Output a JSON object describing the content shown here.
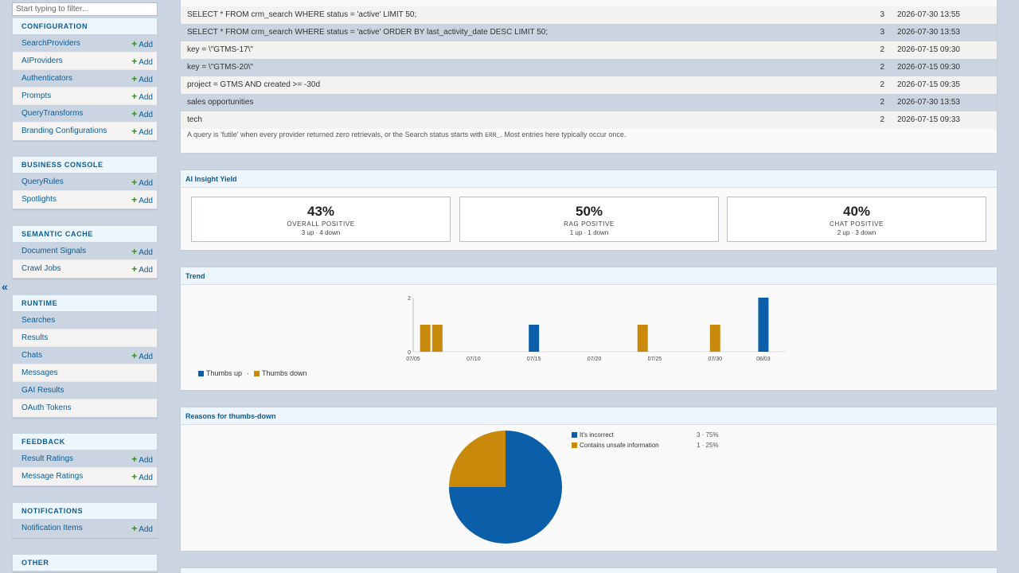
{
  "sidebar": {
    "filter_placeholder": "Start typing to filter...",
    "collapse_glyph": "«",
    "add_label": "Add",
    "modules": [
      {
        "caption": "CONFIGURATION",
        "items": [
          {
            "label": "SearchProviders",
            "add": true
          },
          {
            "label": "AIProviders",
            "add": true
          },
          {
            "label": "Authenticators",
            "add": true
          },
          {
            "label": "Prompts",
            "add": true
          },
          {
            "label": "QueryTransforms",
            "add": true
          },
          {
            "label": "Branding Configurations",
            "add": true
          }
        ]
      },
      {
        "caption": "BUSINESS CONSOLE",
        "items": [
          {
            "label": "QueryRules",
            "add": true
          },
          {
            "label": "Spotlights",
            "add": true
          }
        ]
      },
      {
        "caption": "SEMANTIC CACHE",
        "items": [
          {
            "label": "Document Signals",
            "add": true
          },
          {
            "label": "Crawl Jobs",
            "add": true
          }
        ]
      },
      {
        "caption": "RUNTIME",
        "items": [
          {
            "label": "Searches",
            "add": false
          },
          {
            "label": "Results",
            "add": false
          },
          {
            "label": "Chats",
            "add": true
          },
          {
            "label": "Messages",
            "add": false
          },
          {
            "label": "GAI Results",
            "add": false
          },
          {
            "label": "OAuth Tokens",
            "add": false
          }
        ]
      },
      {
        "caption": "FEEDBACK",
        "items": [
          {
            "label": "Result Ratings",
            "add": true
          },
          {
            "label": "Message Ratings",
            "add": true
          }
        ]
      },
      {
        "caption": "NOTIFICATIONS",
        "items": [
          {
            "label": "Notification Items",
            "add": true
          }
        ]
      },
      {
        "caption": "OTHER",
        "items": []
      }
    ]
  },
  "futile_queries": {
    "rows": [
      {
        "query": "SELECT * FROM crm_search WHERE status = 'active' LIMIT 50;",
        "count": "3",
        "last": "2026-07-30 13:55"
      },
      {
        "query": "SELECT * FROM crm_search WHERE status = 'active' ORDER BY last_activity_date DESC LIMIT 50;",
        "count": "3",
        "last": "2026-07-30 13:53"
      },
      {
        "query": "key = \\\"GTMS-17\\\"",
        "count": "2",
        "last": "2026-07-15 09:30"
      },
      {
        "query": "key = \\\"GTMS-20\\\"",
        "count": "2",
        "last": "2026-07-15 09:30"
      },
      {
        "query": "project = GTMS AND created >= -30d",
        "count": "2",
        "last": "2026-07-15 09:35"
      },
      {
        "query": "sales opportunities",
        "count": "2",
        "last": "2026-07-30 13:53"
      },
      {
        "query": "tech",
        "count": "2",
        "last": "2026-07-15 09:33"
      }
    ],
    "note_before": "A query is 'futile' when every provider returned zero retrievals, or the Search status starts with",
    "note_code": "ERR_",
    "note_after": ". Most entries here typically occur once."
  },
  "insight": {
    "title": "AI Insight Yield",
    "cards": [
      {
        "pct": "43%",
        "label": "OVERALL POSITIVE",
        "sub": "3 up · 4 down"
      },
      {
        "pct": "50%",
        "label": "RAG POSITIVE",
        "sub": "1 up · 1 down"
      },
      {
        "pct": "40%",
        "label": "CHAT POSITIVE",
        "sub": "2 up · 3 down"
      }
    ]
  },
  "trend": {
    "title": "Trend",
    "legend": {
      "up": "Thumbs up",
      "sep": "·",
      "down": "Thumbs down"
    }
  },
  "reasons": {
    "title": "Reasons for thumbs-down"
  },
  "colors": {
    "up": "#0a5fa8",
    "down": "#c98a0b",
    "accent": "#0a5c96",
    "add_plus": "#3a8a26"
  },
  "chart_data": [
    {
      "type": "bar",
      "title": "Trend",
      "x_ticks": [
        "07/05",
        "07/10",
        "07/15",
        "07/20",
        "07/25",
        "07/30",
        "08/03"
      ],
      "y_ticks": [
        0,
        2
      ],
      "ylim": [
        0,
        2
      ],
      "series": [
        {
          "name": "Thumbs up",
          "points": [
            {
              "x": "2026-07-15",
              "y": 1
            },
            {
              "x": "2026-08-03",
              "y": 2
            }
          ]
        },
        {
          "name": "Thumbs down",
          "points": [
            {
              "x": "2026-07-06",
              "y": 1
            },
            {
              "x": "2026-07-07",
              "y": 1
            },
            {
              "x": "2026-07-24",
              "y": 1
            },
            {
              "x": "2026-07-30",
              "y": 1
            }
          ]
        }
      ],
      "legend_position": "bottom-left"
    },
    {
      "type": "pie",
      "title": "Reasons for thumbs-down",
      "slices": [
        {
          "label": "It's incorrect",
          "value": 3,
          "display": "3 · 75%"
        },
        {
          "label": "Contains unsafe information",
          "value": 1,
          "display": "1 · 25%"
        }
      ],
      "legend_position": "right"
    }
  ]
}
